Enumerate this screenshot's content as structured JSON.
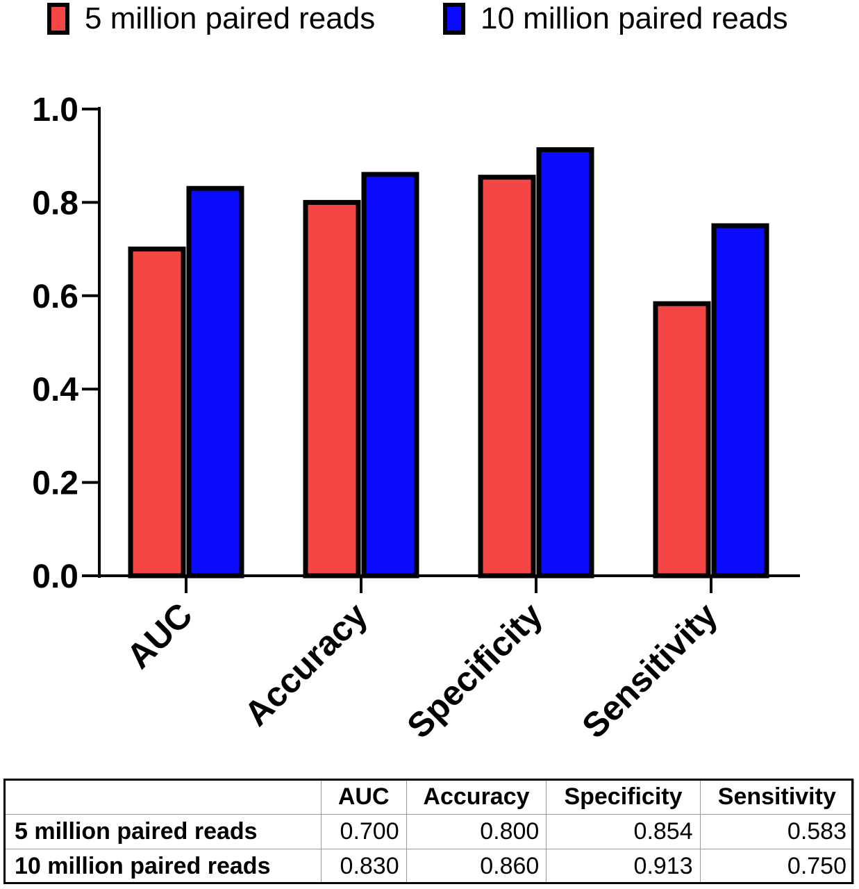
{
  "chart_data": {
    "type": "bar",
    "categories": [
      "AUC",
      "Accuracy",
      "Specificity",
      "Sensitivity"
    ],
    "series": [
      {
        "name": "5 million paired reads",
        "color": "#f54646",
        "values": [
          0.7,
          0.8,
          0.854,
          0.583
        ]
      },
      {
        "name": "10 million paired reads",
        "color": "#0a0aff",
        "values": [
          0.83,
          0.86,
          0.913,
          0.75
        ]
      }
    ],
    "ylim": [
      0,
      1.0
    ],
    "yticks": [
      "0.0",
      "0.2",
      "0.4",
      "0.6",
      "0.8",
      "1.0"
    ],
    "legend_position": "top",
    "grid": false
  },
  "table": {
    "headers": [
      "",
      "AUC",
      "Accuracy",
      "Specificity",
      "Sensitivity"
    ],
    "rows": [
      {
        "label": "5 million paired reads",
        "values": [
          "0.700",
          "0.800",
          "0.854",
          "0.583"
        ]
      },
      {
        "label": "10 million paired reads",
        "values": [
          "0.830",
          "0.860",
          "0.913",
          "0.750"
        ]
      }
    ]
  }
}
